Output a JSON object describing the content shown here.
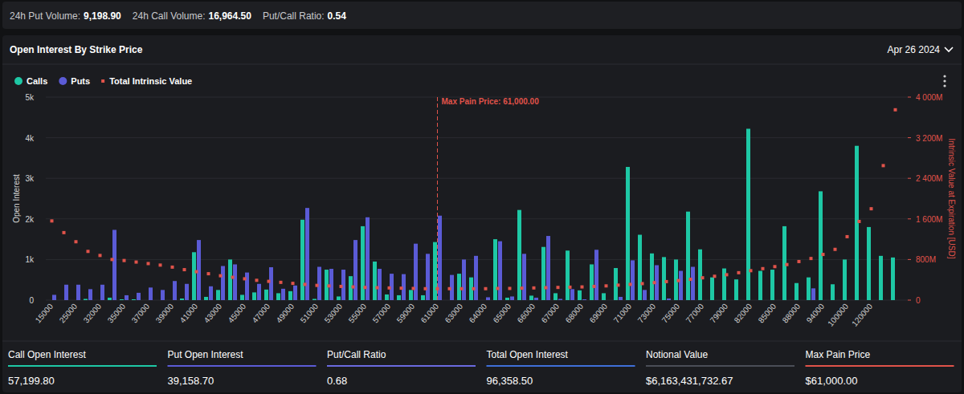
{
  "summary": [
    {
      "label": "24h Put Volume:",
      "value": "9,198.90"
    },
    {
      "label": "24h Call Volume:",
      "value": "16,964.50"
    },
    {
      "label": "Put/Call Ratio:",
      "value": "0.54"
    }
  ],
  "header": {
    "title": "Open Interest By Strike Price",
    "date": "Apr 26 2024"
  },
  "chart_data": {
    "type": "bar",
    "grid": true,
    "legend": "top-left",
    "y_label": "Open Interest",
    "y2_label": "Intrinsic Value at Expiration [USD]",
    "categories": [
      "15000",
      null,
      "25000",
      null,
      "32000",
      null,
      "35000",
      null,
      "37000",
      null,
      "39000",
      null,
      "41000",
      null,
      "43000",
      null,
      "45000",
      null,
      "47000",
      null,
      "49000",
      null,
      "51000",
      null,
      "53000",
      null,
      "55000",
      null,
      "57000",
      null,
      "59000",
      null,
      "61000",
      null,
      "63000",
      null,
      "64000",
      null,
      "65000",
      null,
      "66000",
      null,
      "67000",
      null,
      "68000",
      null,
      "69000",
      null,
      "71000",
      null,
      "73000",
      null,
      "75000",
      null,
      "77000",
      null,
      "79000",
      null,
      "82000",
      null,
      "85000",
      null,
      "88000",
      null,
      "94000",
      null,
      "100000",
      null,
      "120000",
      null,
      null
    ],
    "series": [
      {
        "name": "Calls",
        "color": "#1ec8a5",
        "values": [
          0,
          0,
          0,
          30,
          0,
          60,
          20,
          20,
          0,
          0,
          0,
          40,
          1180,
          80,
          250,
          1000,
          130,
          190,
          260,
          170,
          220,
          1980,
          30,
          750,
          90,
          590,
          1820,
          950,
          140,
          120,
          250,
          120,
          1430,
          0,
          650,
          560,
          0,
          1500,
          60,
          2220,
          110,
          1310,
          170,
          1220,
          240,
          880,
          170,
          790,
          3280,
          1610,
          1150,
          1060,
          1000,
          2180,
          1250,
          560,
          780,
          510,
          4220,
          720,
          750,
          1820,
          420,
          560,
          2680,
          390,
          1000,
          3800,
          1800,
          1090,
          1050
        ]
      },
      {
        "name": "Puts",
        "color": "#5b5bd6",
        "values": [
          130,
          380,
          380,
          270,
          380,
          1730,
          120,
          180,
          310,
          250,
          470,
          400,
          1480,
          340,
          840,
          880,
          680,
          400,
          810,
          280,
          360,
          2270,
          820,
          770,
          750,
          1480,
          2040,
          770,
          650,
          640,
          1390,
          1140,
          2080,
          620,
          1000,
          1090,
          70,
          1450,
          90,
          1140,
          60,
          1580,
          30,
          270,
          20,
          1240,
          0,
          80,
          980,
          250,
          860,
          40,
          720,
          820,
          0,
          0,
          0,
          0,
          0,
          0,
          0,
          0,
          0,
          290,
          0,
          0,
          0,
          0,
          0,
          0,
          0
        ]
      },
      {
        "name": "Total Intrinsic Value",
        "color": "#e0534a",
        "type": "scatter",
        "marker": "square",
        "axis": "y2",
        "values": [
          1560000000,
          1330000000,
          1150000000,
          960000000,
          880000000,
          800000000,
          780000000,
          750000000,
          720000000,
          690000000,
          650000000,
          600000000,
          560000000,
          520000000,
          480000000,
          450000000,
          420000000,
          390000000,
          370000000,
          350000000,
          330000000,
          310000000,
          290000000,
          280000000,
          270000000,
          260000000,
          250000000,
          245000000,
          240000000,
          235000000,
          230000000,
          225000000,
          225000000,
          225000000,
          225000000,
          225000000,
          225000000,
          230000000,
          230000000,
          235000000,
          240000000,
          245000000,
          250000000,
          255000000,
          260000000,
          270000000,
          280000000,
          295000000,
          310000000,
          325000000,
          345000000,
          365000000,
          385000000,
          410000000,
          440000000,
          470000000,
          500000000,
          540000000,
          580000000,
          620000000,
          660000000,
          700000000,
          760000000,
          820000000,
          900000000,
          1000000000,
          1250000000,
          1550000000,
          1800000000,
          2650000000,
          3750000000
        ]
      }
    ],
    "ylim": [
      0,
      5000
    ],
    "yticks": [
      0,
      {
        "value": 1000,
        "label": "1k"
      },
      {
        "value": 2000,
        "label": "2k"
      },
      {
        "value": 3000,
        "label": "3k"
      },
      {
        "value": 4000,
        "label": "4k"
      },
      {
        "value": 5000,
        "label": "5k"
      }
    ],
    "y2lim": [
      0,
      4000000000
    ],
    "y2ticks": [
      0,
      {
        "value": 800000000,
        "label": "800M"
      },
      {
        "value": 1600000000,
        "label": "1 600M"
      },
      {
        "value": 2400000000,
        "label": "2 400M"
      },
      {
        "value": 3200000000,
        "label": "3 200M"
      },
      {
        "value": 4000000000,
        "label": "4 000M"
      }
    ],
    "annotations": [
      {
        "text": "Max Pain Price: 61,000.00",
        "x": "61000",
        "line_style": "dashed",
        "color": "#e0534a"
      }
    ]
  },
  "stats": [
    {
      "label": "Call Open Interest",
      "value": "57,199.80",
      "color": "#1ec8a5"
    },
    {
      "label": "Put Open Interest",
      "value": "39,158.70",
      "color": "#5b5bd6"
    },
    {
      "label": "Put/Call Ratio",
      "value": "0.68",
      "color": "#6a6adf"
    },
    {
      "label": "Total Open Interest",
      "value": "96,358.50",
      "color": "#3f6fd8"
    },
    {
      "label": "Notional Value",
      "value": "$6,163,431,732.67",
      "color": "#4a4d57"
    },
    {
      "label": "Max Pain Price",
      "value": "$61,000.00",
      "color": "#e0534a"
    }
  ]
}
